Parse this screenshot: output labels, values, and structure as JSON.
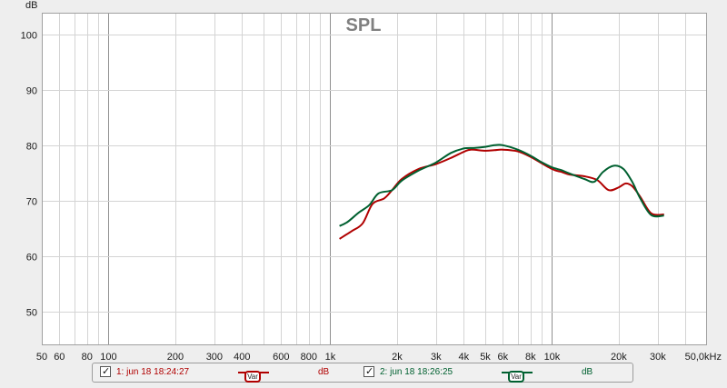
{
  "chart_data": {
    "type": "line",
    "title": "SPL",
    "ylabel": "dB",
    "xlabel": "",
    "x_scale": "log",
    "xlim": [
      50,
      50000
    ],
    "ylim": [
      44,
      104
    ],
    "grid": true,
    "y_ticks": [
      {
        "value": 100,
        "label": "100"
      },
      {
        "value": 90,
        "label": "90"
      },
      {
        "value": 80,
        "label": "80"
      },
      {
        "value": 70,
        "label": "70"
      },
      {
        "value": 60,
        "label": "60"
      },
      {
        "value": 50,
        "label": "50"
      }
    ],
    "x_ticks": [
      {
        "value": 50,
        "label": "50"
      },
      {
        "value": 60,
        "label": "60"
      },
      {
        "value": 80,
        "label": "80"
      },
      {
        "value": 100,
        "label": "100"
      },
      {
        "value": 200,
        "label": "200"
      },
      {
        "value": 300,
        "label": "300"
      },
      {
        "value": 400,
        "label": "400"
      },
      {
        "value": 600,
        "label": "600"
      },
      {
        "value": 800,
        "label": "800"
      },
      {
        "value": 1000,
        "label": "1k"
      },
      {
        "value": 2000,
        "label": "2k"
      },
      {
        "value": 3000,
        "label": "3k"
      },
      {
        "value": 4000,
        "label": "4k"
      },
      {
        "value": 5000,
        "label": "5k"
      },
      {
        "value": 6000,
        "label": "6k"
      },
      {
        "value": 8000,
        "label": "8k"
      },
      {
        "value": 10000,
        "label": "10k"
      },
      {
        "value": 20000,
        "label": "20k"
      },
      {
        "value": 30000,
        "label": "30k"
      },
      {
        "value": 50000,
        "label": "50,0kHz"
      }
    ],
    "series": [
      {
        "name": "1: jun 18 18:24:27",
        "color": "#b00000",
        "points": [
          [
            1100,
            63.2
          ],
          [
            1250,
            64.6
          ],
          [
            1400,
            66.0
          ],
          [
            1550,
            69.5
          ],
          [
            1750,
            70.5
          ],
          [
            1900,
            72.0
          ],
          [
            2100,
            74.0
          ],
          [
            2500,
            75.8
          ],
          [
            3000,
            76.7
          ],
          [
            3500,
            77.8
          ],
          [
            4000,
            78.9
          ],
          [
            4300,
            79.3
          ],
          [
            5000,
            79.1
          ],
          [
            5500,
            79.2
          ],
          [
            6000,
            79.3
          ],
          [
            7000,
            79.0
          ],
          [
            8000,
            78.0
          ],
          [
            10000,
            75.8
          ],
          [
            11000,
            75.3
          ],
          [
            12000,
            74.8
          ],
          [
            14000,
            74.5
          ],
          [
            16000,
            73.8
          ],
          [
            18000,
            72.0
          ],
          [
            20000,
            72.5
          ],
          [
            21500,
            73.2
          ],
          [
            23000,
            72.7
          ],
          [
            25000,
            70.8
          ],
          [
            28000,
            67.8
          ],
          [
            32000,
            67.6
          ]
        ]
      },
      {
        "name": "2: jun 18 18:26:25",
        "color": "#006030",
        "points": [
          [
            1100,
            65.5
          ],
          [
            1200,
            66.3
          ],
          [
            1350,
            68.0
          ],
          [
            1500,
            69.3
          ],
          [
            1650,
            71.4
          ],
          [
            1900,
            72.0
          ],
          [
            2100,
            73.7
          ],
          [
            2500,
            75.5
          ],
          [
            3000,
            77.0
          ],
          [
            3500,
            78.7
          ],
          [
            4000,
            79.5
          ],
          [
            4500,
            79.6
          ],
          [
            5000,
            79.8
          ],
          [
            5500,
            80.1
          ],
          [
            6000,
            80.1
          ],
          [
            7000,
            79.3
          ],
          [
            8000,
            78.2
          ],
          [
            9000,
            77.0
          ],
          [
            10000,
            76.1
          ],
          [
            11000,
            75.6
          ],
          [
            12000,
            75.0
          ],
          [
            14000,
            74.0
          ],
          [
            15500,
            73.5
          ],
          [
            17000,
            75.3
          ],
          [
            19000,
            76.4
          ],
          [
            21000,
            75.8
          ],
          [
            23000,
            73.5
          ],
          [
            25000,
            70.5
          ],
          [
            28000,
            67.5
          ],
          [
            32000,
            67.4
          ]
        ]
      }
    ]
  },
  "legend": {
    "entries": [
      {
        "label": "1: jun 18 18:24:27",
        "var": "Var",
        "unit": "dB",
        "color": "#b00000",
        "checked": true
      },
      {
        "label": "2: jun 18 18:26:25",
        "var": "Var",
        "unit": "dB",
        "color": "#006030",
        "checked": true
      }
    ]
  },
  "colors": {
    "plot_background": "#ffffff",
    "page_background": "#eeeeee",
    "major_grid": "#909090",
    "minor_grid": "#d4d4d4"
  }
}
